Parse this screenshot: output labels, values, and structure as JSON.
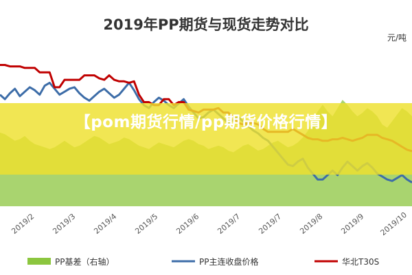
{
  "chart_data": {
    "type": "line",
    "title": "2019年PP期货与现货走势对比",
    "unit_label": "元/吨",
    "x_tick_labels": [
      "2019/2",
      "2019/3",
      "2019/4",
      "2019/5",
      "2019/6",
      "2019/7",
      "2019/7",
      "2019/8",
      "2019/9",
      "2019/10"
    ],
    "series": [
      {
        "name": "PP基差（右轴）",
        "kind": "area",
        "axis": "right",
        "color": "#8cc63f",
        "values": [
          0.45,
          0.44,
          0.42,
          0.4,
          0.41,
          0.43,
          0.4,
          0.38,
          0.37,
          0.36,
          0.35,
          0.36,
          0.38,
          0.4,
          0.38,
          0.36,
          0.37,
          0.39,
          0.41,
          0.43,
          0.42,
          0.4,
          0.38,
          0.39,
          0.4,
          0.42,
          0.41,
          0.39,
          0.37,
          0.36,
          0.35,
          0.37,
          0.39,
          0.38,
          0.37,
          0.36,
          0.38,
          0.4,
          0.41,
          0.4,
          0.38,
          0.37,
          0.35,
          0.36,
          0.37,
          0.36,
          0.34,
          0.33,
          0.35,
          0.37,
          0.38,
          0.36,
          0.34,
          0.35,
          0.37,
          0.39,
          0.4,
          0.38,
          0.36,
          0.37,
          0.39,
          0.42,
          0.46,
          0.52,
          0.58,
          0.62,
          0.58,
          0.55,
          0.6,
          0.65,
          0.62,
          0.58,
          0.55,
          0.57,
          0.6,
          0.58,
          0.55,
          0.5,
          0.48,
          0.52,
          0.56,
          0.6,
          0.58,
          0.55
        ]
      },
      {
        "name": "PP主连收盘价格",
        "kind": "line",
        "axis": "left",
        "color": "#3d6da8",
        "values": [
          8950,
          8920,
          8960,
          8990,
          8940,
          8970,
          9000,
          8980,
          8950,
          9010,
          9030,
          8990,
          8950,
          8970,
          8990,
          9000,
          8960,
          8930,
          8910,
          8940,
          8970,
          8990,
          8960,
          8930,
          8950,
          8990,
          9030,
          8980,
          8920,
          8880,
          8860,
          8900,
          8930,
          8910,
          8880,
          8860,
          8890,
          8920,
          8870,
          8830,
          8790,
          8800,
          8830,
          8850,
          8820,
          8790,
          8760,
          8780,
          8800,
          8770,
          8740,
          8710,
          8690,
          8660,
          8640,
          8600,
          8560,
          8520,
          8480,
          8470,
          8500,
          8520,
          8460,
          8420,
          8380,
          8380,
          8410,
          8440,
          8410,
          8460,
          8500,
          8470,
          8440,
          8470,
          8490,
          8460,
          8420,
          8400,
          8380,
          8370,
          8390,
          8410,
          8380,
          8360
        ]
      },
      {
        "name": "华北T30S",
        "kind": "line",
        "axis": "left",
        "color": "#c00000",
        "values": [
          9150,
          9150,
          9140,
          9140,
          9140,
          9130,
          9130,
          9130,
          9100,
          9100,
          9100,
          9000,
          9000,
          9050,
          9050,
          9050,
          9050,
          9080,
          9080,
          9080,
          9060,
          9050,
          9080,
          9050,
          9040,
          9040,
          9030,
          9040,
          8950,
          8900,
          8900,
          8880,
          8880,
          8920,
          8920,
          8880,
          8900,
          8900,
          8850,
          8840,
          8830,
          8850,
          8850,
          8850,
          8860,
          8830,
          8830,
          8800,
          8760,
          8750,
          8760,
          8760,
          8750,
          8720,
          8700,
          8700,
          8700,
          8700,
          8700,
          8720,
          8700,
          8680,
          8660,
          8650,
          8650,
          8640,
          8640,
          8650,
          8650,
          8660,
          8650,
          8640,
          8650,
          8660,
          8680,
          8680,
          8680,
          8660,
          8650,
          8640,
          8620,
          8600,
          8580,
          8570
        ]
      }
    ],
    "legend_position": "bottom",
    "grid": false
  },
  "banner": {
    "text": "【pom期货行情/pp期货价格行情】"
  }
}
